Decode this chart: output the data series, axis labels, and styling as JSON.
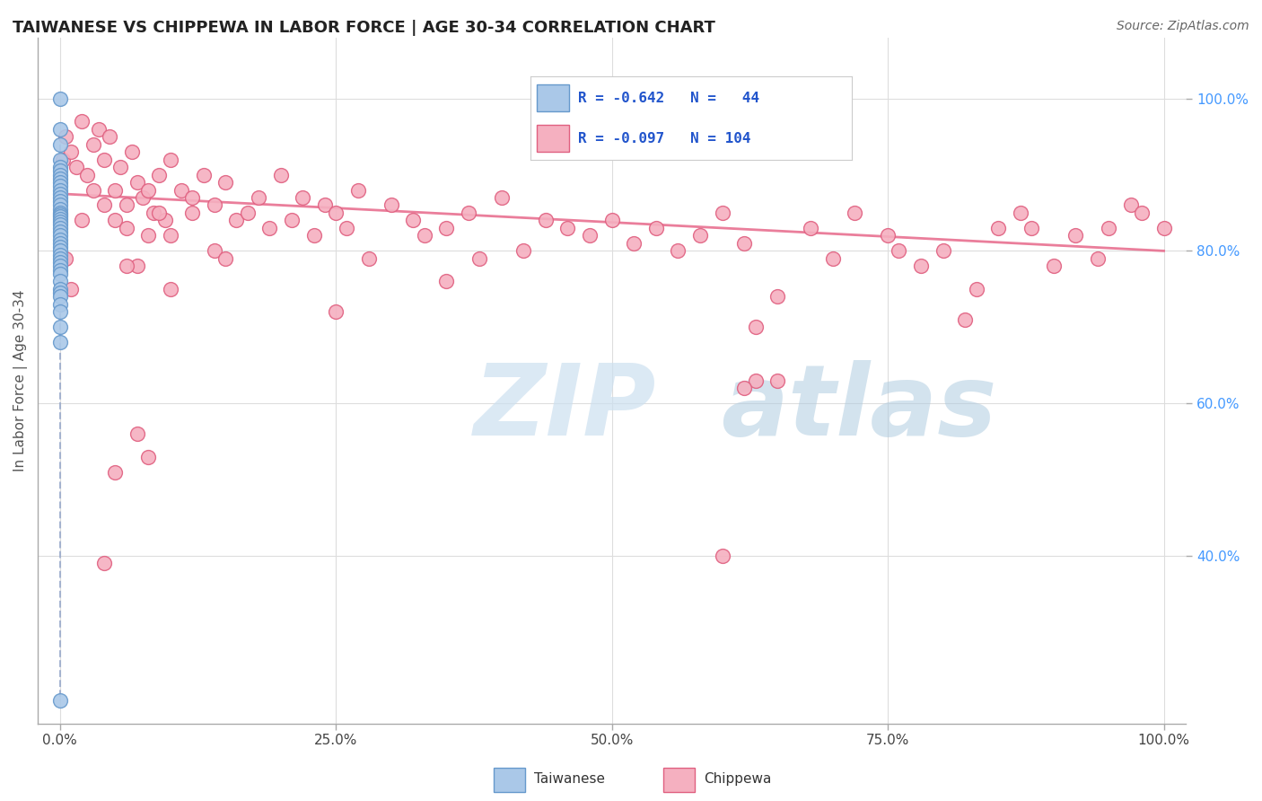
{
  "title": "TAIWANESE VS CHIPPEWA IN LABOR FORCE | AGE 30-34 CORRELATION CHART",
  "source": "Source: ZipAtlas.com",
  "ylabel": "In Labor Force | Age 30-34",
  "xlim": [
    -0.02,
    1.02
  ],
  "ylim": [
    0.18,
    1.08
  ],
  "taiwanese_color": "#aac8e8",
  "taiwanese_edge": "#6699cc",
  "chippewa_color": "#f5b0c0",
  "chippewa_edge": "#e06080",
  "trend_taiwanese_color": "#99aacc",
  "trend_chippewa_color": "#e87090",
  "watermark_zip_color": "#cce0f0",
  "watermark_atlas_color": "#b0cce0",
  "grid_color": "#dddddd",
  "title_color": "#222222",
  "source_color": "#666666",
  "yticklabel_color": "#4499ff",
  "xticklabel_color": "#444444",
  "ylabel_color": "#555555",
  "legend_border_color": "#cccccc",
  "bottom_legend_label_color": "#333333",
  "taiwanese_x": [
    0.0,
    0.0,
    0.0,
    0.0,
    0.0,
    0.0,
    0.0,
    0.0,
    0.0,
    0.0,
    0.0,
    0.0,
    0.0,
    0.0,
    0.0,
    0.0,
    0.0,
    0.0,
    0.0,
    0.0,
    0.0,
    0.0,
    0.0,
    0.0,
    0.0,
    0.0,
    0.0,
    0.0,
    0.0,
    0.0,
    0.0,
    0.0,
    0.0,
    0.0,
    0.0,
    0.0,
    0.0,
    0.0,
    0.0,
    0.0,
    0.0,
    0.0,
    0.0,
    0.0
  ],
  "taiwanese_y": [
    1.0,
    0.96,
    0.94,
    0.92,
    0.91,
    0.905,
    0.9,
    0.895,
    0.89,
    0.885,
    0.88,
    0.875,
    0.87,
    0.865,
    0.86,
    0.855,
    0.85,
    0.848,
    0.845,
    0.842,
    0.838,
    0.835,
    0.83,
    0.825,
    0.82,
    0.815,
    0.81,
    0.805,
    0.8,
    0.795,
    0.79,
    0.785,
    0.78,
    0.775,
    0.77,
    0.76,
    0.75,
    0.745,
    0.74,
    0.73,
    0.72,
    0.7,
    0.68,
    0.21
  ],
  "chippewa_x": [
    0.003,
    0.005,
    0.01,
    0.015,
    0.02,
    0.025,
    0.03,
    0.035,
    0.04,
    0.045,
    0.05,
    0.055,
    0.06,
    0.065,
    0.07,
    0.075,
    0.08,
    0.085,
    0.09,
    0.095,
    0.1,
    0.11,
    0.12,
    0.13,
    0.14,
    0.15,
    0.16,
    0.17,
    0.18,
    0.19,
    0.2,
    0.21,
    0.22,
    0.23,
    0.24,
    0.25,
    0.26,
    0.27,
    0.28,
    0.3,
    0.32,
    0.33,
    0.35,
    0.37,
    0.38,
    0.4,
    0.42,
    0.44,
    0.46,
    0.48,
    0.5,
    0.52,
    0.54,
    0.56,
    0.58,
    0.6,
    0.62,
    0.63,
    0.65,
    0.68,
    0.7,
    0.72,
    0.75,
    0.76,
    0.78,
    0.8,
    0.82,
    0.83,
    0.85,
    0.87,
    0.88,
    0.9,
    0.92,
    0.94,
    0.95,
    0.97,
    0.98,
    1.0,
    0.005,
    0.01,
    0.02,
    0.03,
    0.04,
    0.05,
    0.06,
    0.07,
    0.09,
    0.1,
    0.12,
    0.14,
    0.06,
    0.08,
    0.04,
    0.6,
    0.62,
    0.63,
    0.65,
    0.35,
    0.25,
    0.15,
    0.1,
    0.08,
    0.07,
    0.05
  ],
  "chippewa_y": [
    0.92,
    0.95,
    0.93,
    0.91,
    0.97,
    0.9,
    0.94,
    0.96,
    0.92,
    0.95,
    0.88,
    0.91,
    0.86,
    0.93,
    0.89,
    0.87,
    0.88,
    0.85,
    0.9,
    0.84,
    0.92,
    0.88,
    0.85,
    0.9,
    0.86,
    0.89,
    0.84,
    0.85,
    0.87,
    0.83,
    0.9,
    0.84,
    0.87,
    0.82,
    0.86,
    0.85,
    0.83,
    0.88,
    0.79,
    0.86,
    0.84,
    0.82,
    0.83,
    0.85,
    0.79,
    0.87,
    0.8,
    0.84,
    0.83,
    0.82,
    0.84,
    0.81,
    0.83,
    0.8,
    0.82,
    0.85,
    0.81,
    0.63,
    0.63,
    0.83,
    0.79,
    0.85,
    0.82,
    0.8,
    0.78,
    0.8,
    0.71,
    0.75,
    0.83,
    0.85,
    0.83,
    0.78,
    0.82,
    0.79,
    0.83,
    0.86,
    0.85,
    0.83,
    0.79,
    0.75,
    0.84,
    0.88,
    0.86,
    0.84,
    0.83,
    0.78,
    0.85,
    0.82,
    0.87,
    0.8,
    0.78,
    0.82,
    0.39,
    0.4,
    0.62,
    0.7,
    0.74,
    0.76,
    0.72,
    0.79,
    0.75,
    0.53,
    0.56,
    0.51
  ],
  "trend_chippewa_x0": 0.0,
  "trend_chippewa_x1": 1.0,
  "trend_chippewa_y0": 0.875,
  "trend_chippewa_y1": 0.8,
  "trend_taiwanese_x0": 0.0,
  "trend_taiwanese_x1": 0.0,
  "trend_taiwanese_y0": 0.94,
  "trend_taiwanese_y1": 0.21
}
